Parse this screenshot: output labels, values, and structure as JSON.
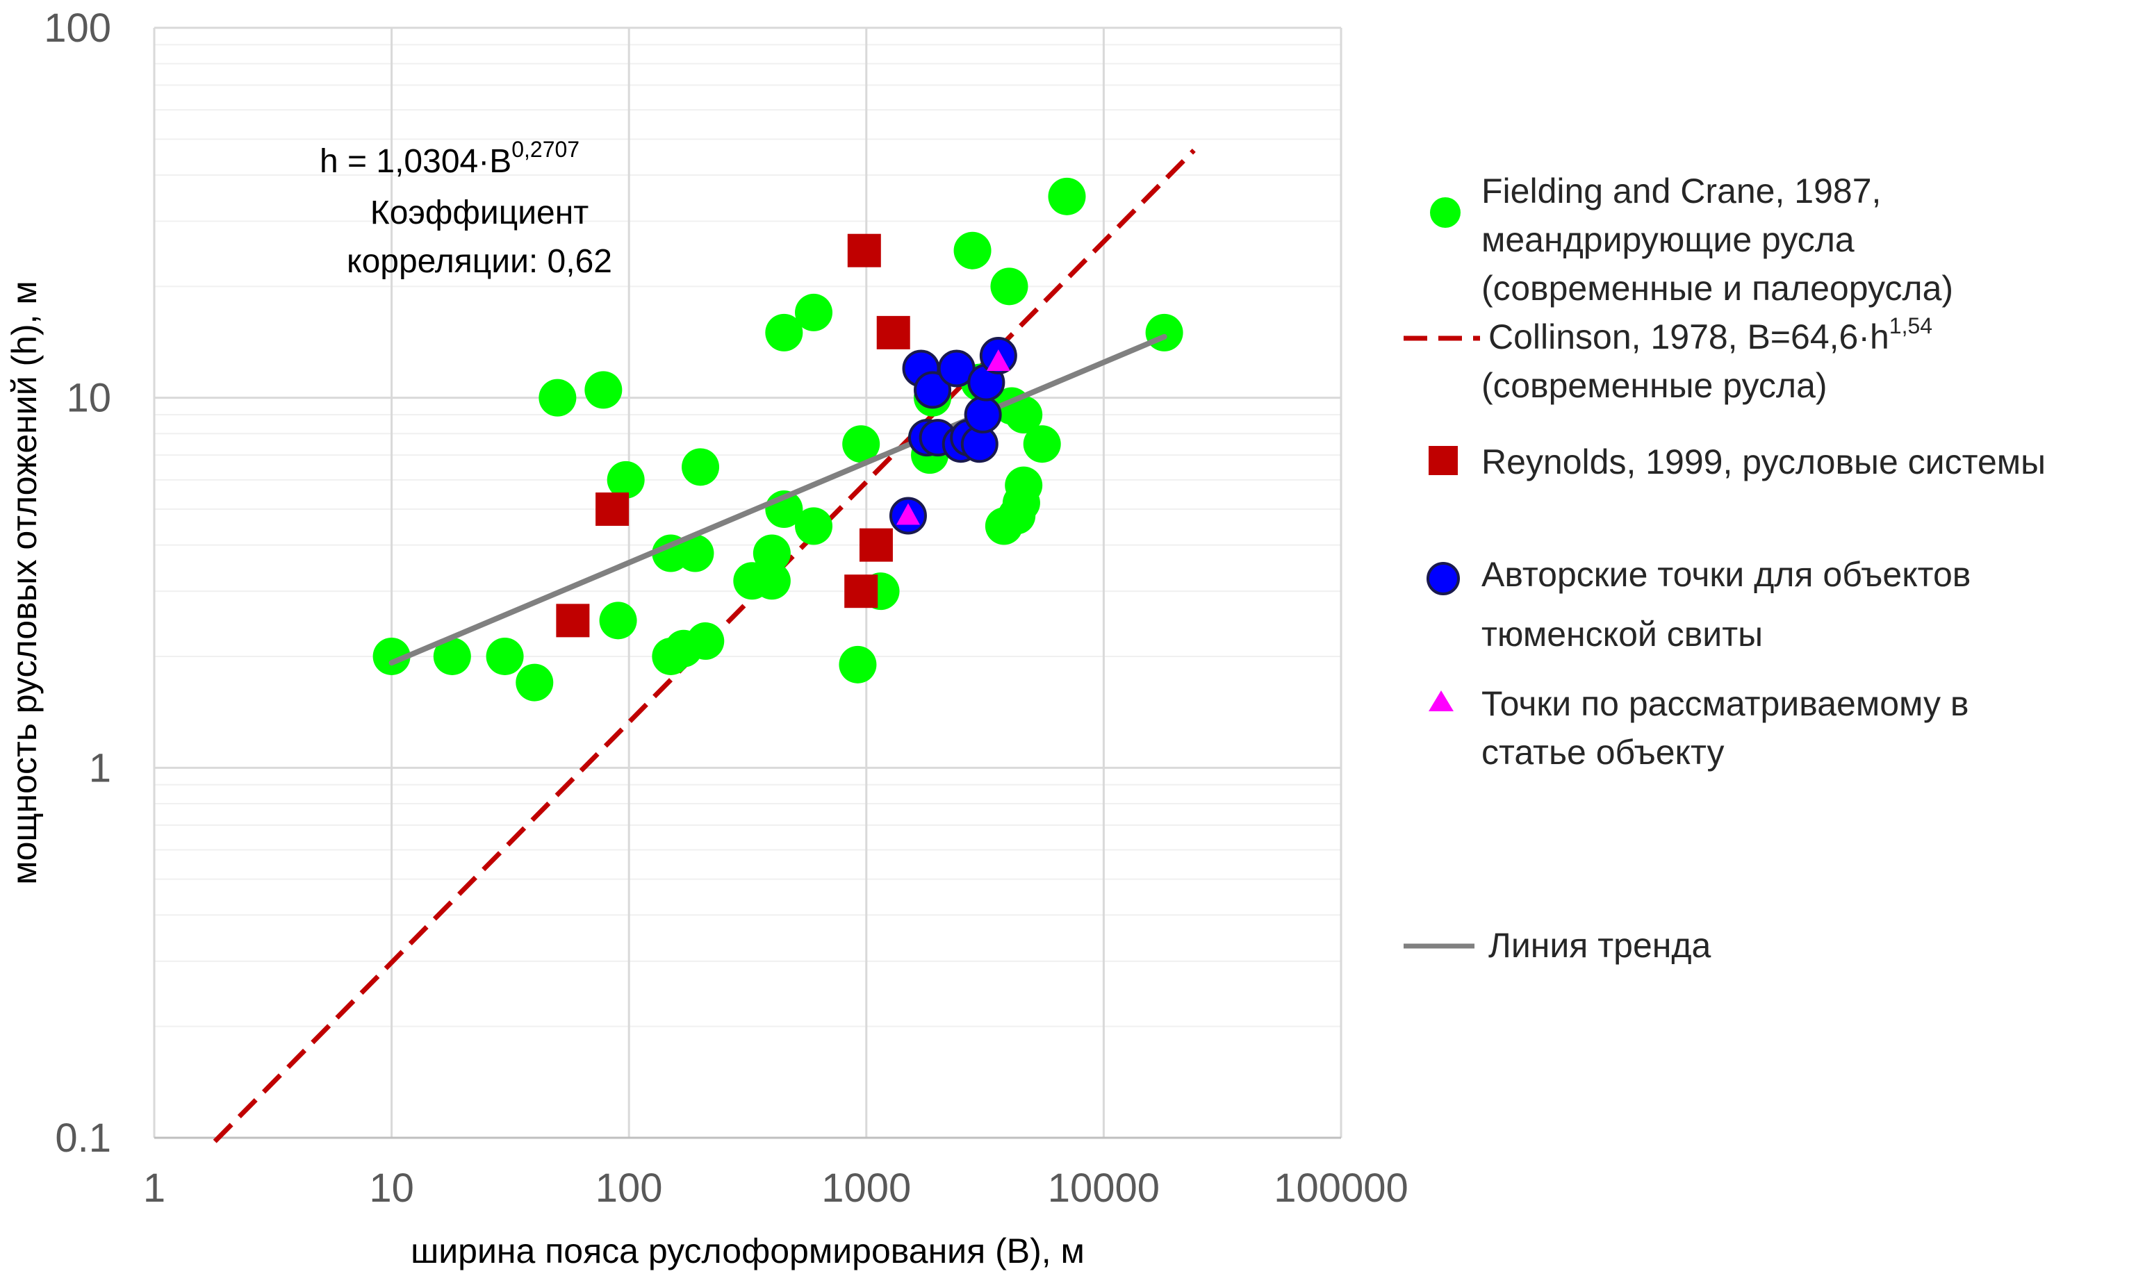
{
  "chart_data": {
    "type": "scatter",
    "xlabel": "ширина пояса руслоформирования (В), м",
    "ylabel": "мощность русловых отложений (h), м",
    "x_scale": "log",
    "y_scale": "log",
    "xlim": [
      1,
      100000
    ],
    "ylim": [
      0.1,
      100
    ],
    "x_ticks": [
      "1",
      "10",
      "100",
      "1000",
      "10000",
      "100000"
    ],
    "y_ticks": [
      "0.1",
      "1",
      "10",
      "100"
    ],
    "grid": true,
    "legend_position": "right",
    "annotation": {
      "line1_base": "h = 1,0304·B",
      "line1_sup": "0,2707",
      "line2": "Коэффициент",
      "line3": "корреляции: 0,62"
    },
    "legend": {
      "fielding": [
        "Fielding and Crane, 1987,",
        "меандрирующие русла",
        "(современные и палеорусла)"
      ],
      "collinson_base": "Collinson, 1978, B=64,6·h",
      "collinson_sup": "1,54",
      "collinson_line2": "(современные русла)",
      "reynolds": "Reynolds, 1999, русловые системы",
      "author": [
        "Авторские точки для объектов",
        "тюменской свиты"
      ],
      "object": [
        "Точки по рассматриваемому в",
        "статье объекту"
      ],
      "trend": "Линия тренда"
    },
    "colors": {
      "fielding": "#00ff00",
      "collinson": "#c00000",
      "reynolds": "#c00000",
      "author": "#0000ff",
      "author_outline": "#1a1a4d",
      "object": "#ff00ff",
      "trend": "#808080",
      "grid": "#d9d9d9"
    },
    "series": [
      {
        "name": "Fielding and Crane, 1987, меандрирующие русла (современные и палеорусла)",
        "marker": "circle",
        "points": [
          [
            10,
            2.0
          ],
          [
            18,
            2.0
          ],
          [
            30,
            2.0
          ],
          [
            40,
            1.7
          ],
          [
            50,
            10.0
          ],
          [
            78,
            10.5
          ],
          [
            90,
            2.5
          ],
          [
            97,
            6.0
          ],
          [
            150,
            3.8
          ],
          [
            150,
            2.0
          ],
          [
            170,
            2.1
          ],
          [
            190,
            3.8
          ],
          [
            200,
            6.5
          ],
          [
            210,
            2.2
          ],
          [
            330,
            3.2
          ],
          [
            400,
            3.8
          ],
          [
            400,
            3.2
          ],
          [
            450,
            15.0
          ],
          [
            450,
            5.0
          ],
          [
            600,
            4.5
          ],
          [
            600,
            17.0
          ],
          [
            920,
            1.9
          ],
          [
            950,
            7.5
          ],
          [
            1150,
            3.0
          ],
          [
            1800,
            7.8
          ],
          [
            1850,
            7.0
          ],
          [
            1900,
            10.0
          ],
          [
            2800,
            25.0
          ],
          [
            3000,
            11.0
          ],
          [
            3800,
            4.5
          ],
          [
            4000,
            20.0
          ],
          [
            4100,
            9.5
          ],
          [
            4300,
            4.8
          ],
          [
            4500,
            5.2
          ],
          [
            4600,
            5.8
          ],
          [
            4600,
            9.0
          ],
          [
            5500,
            7.5
          ],
          [
            7000,
            35.0
          ],
          [
            18000,
            15.0
          ]
        ]
      },
      {
        "name": "Reynolds, 1999, русловые системы",
        "marker": "square",
        "points": [
          [
            58,
            2.5
          ],
          [
            85,
            5.0
          ],
          [
            950,
            3.0
          ],
          [
            980,
            25.0
          ],
          [
            1100,
            4.0
          ],
          [
            1300,
            15.0
          ]
        ]
      },
      {
        "name": "Авторские точки для объектов тюменской свиты",
        "marker": "circle",
        "points": [
          [
            1500,
            4.8
          ],
          [
            1700,
            12.0
          ],
          [
            1800,
            7.8
          ],
          [
            1900,
            10.5
          ],
          [
            2000,
            7.8
          ],
          [
            2400,
            12.0
          ],
          [
            2500,
            7.5
          ],
          [
            2700,
            7.8
          ],
          [
            3000,
            7.5
          ],
          [
            3100,
            9.0
          ],
          [
            3200,
            11.0
          ],
          [
            3600,
            13.0
          ]
        ]
      },
      {
        "name": "Точки по рассматриваемому в статье объекту",
        "marker": "triangle",
        "points": [
          [
            1500,
            4.8
          ],
          [
            3600,
            12.5
          ]
        ]
      }
    ],
    "lines": [
      {
        "name": "Collinson, 1978, B=64,6·h^1,54 (современные русла)",
        "style": "dashed",
        "coef": 64.6,
        "exp": 1.54,
        "xrange": [
          1.8,
          24000
        ]
      },
      {
        "name": "Линия тренда",
        "style": "solid",
        "coef": 1.0304,
        "exp": 0.2707,
        "xrange": [
          10,
          18000
        ]
      }
    ]
  }
}
